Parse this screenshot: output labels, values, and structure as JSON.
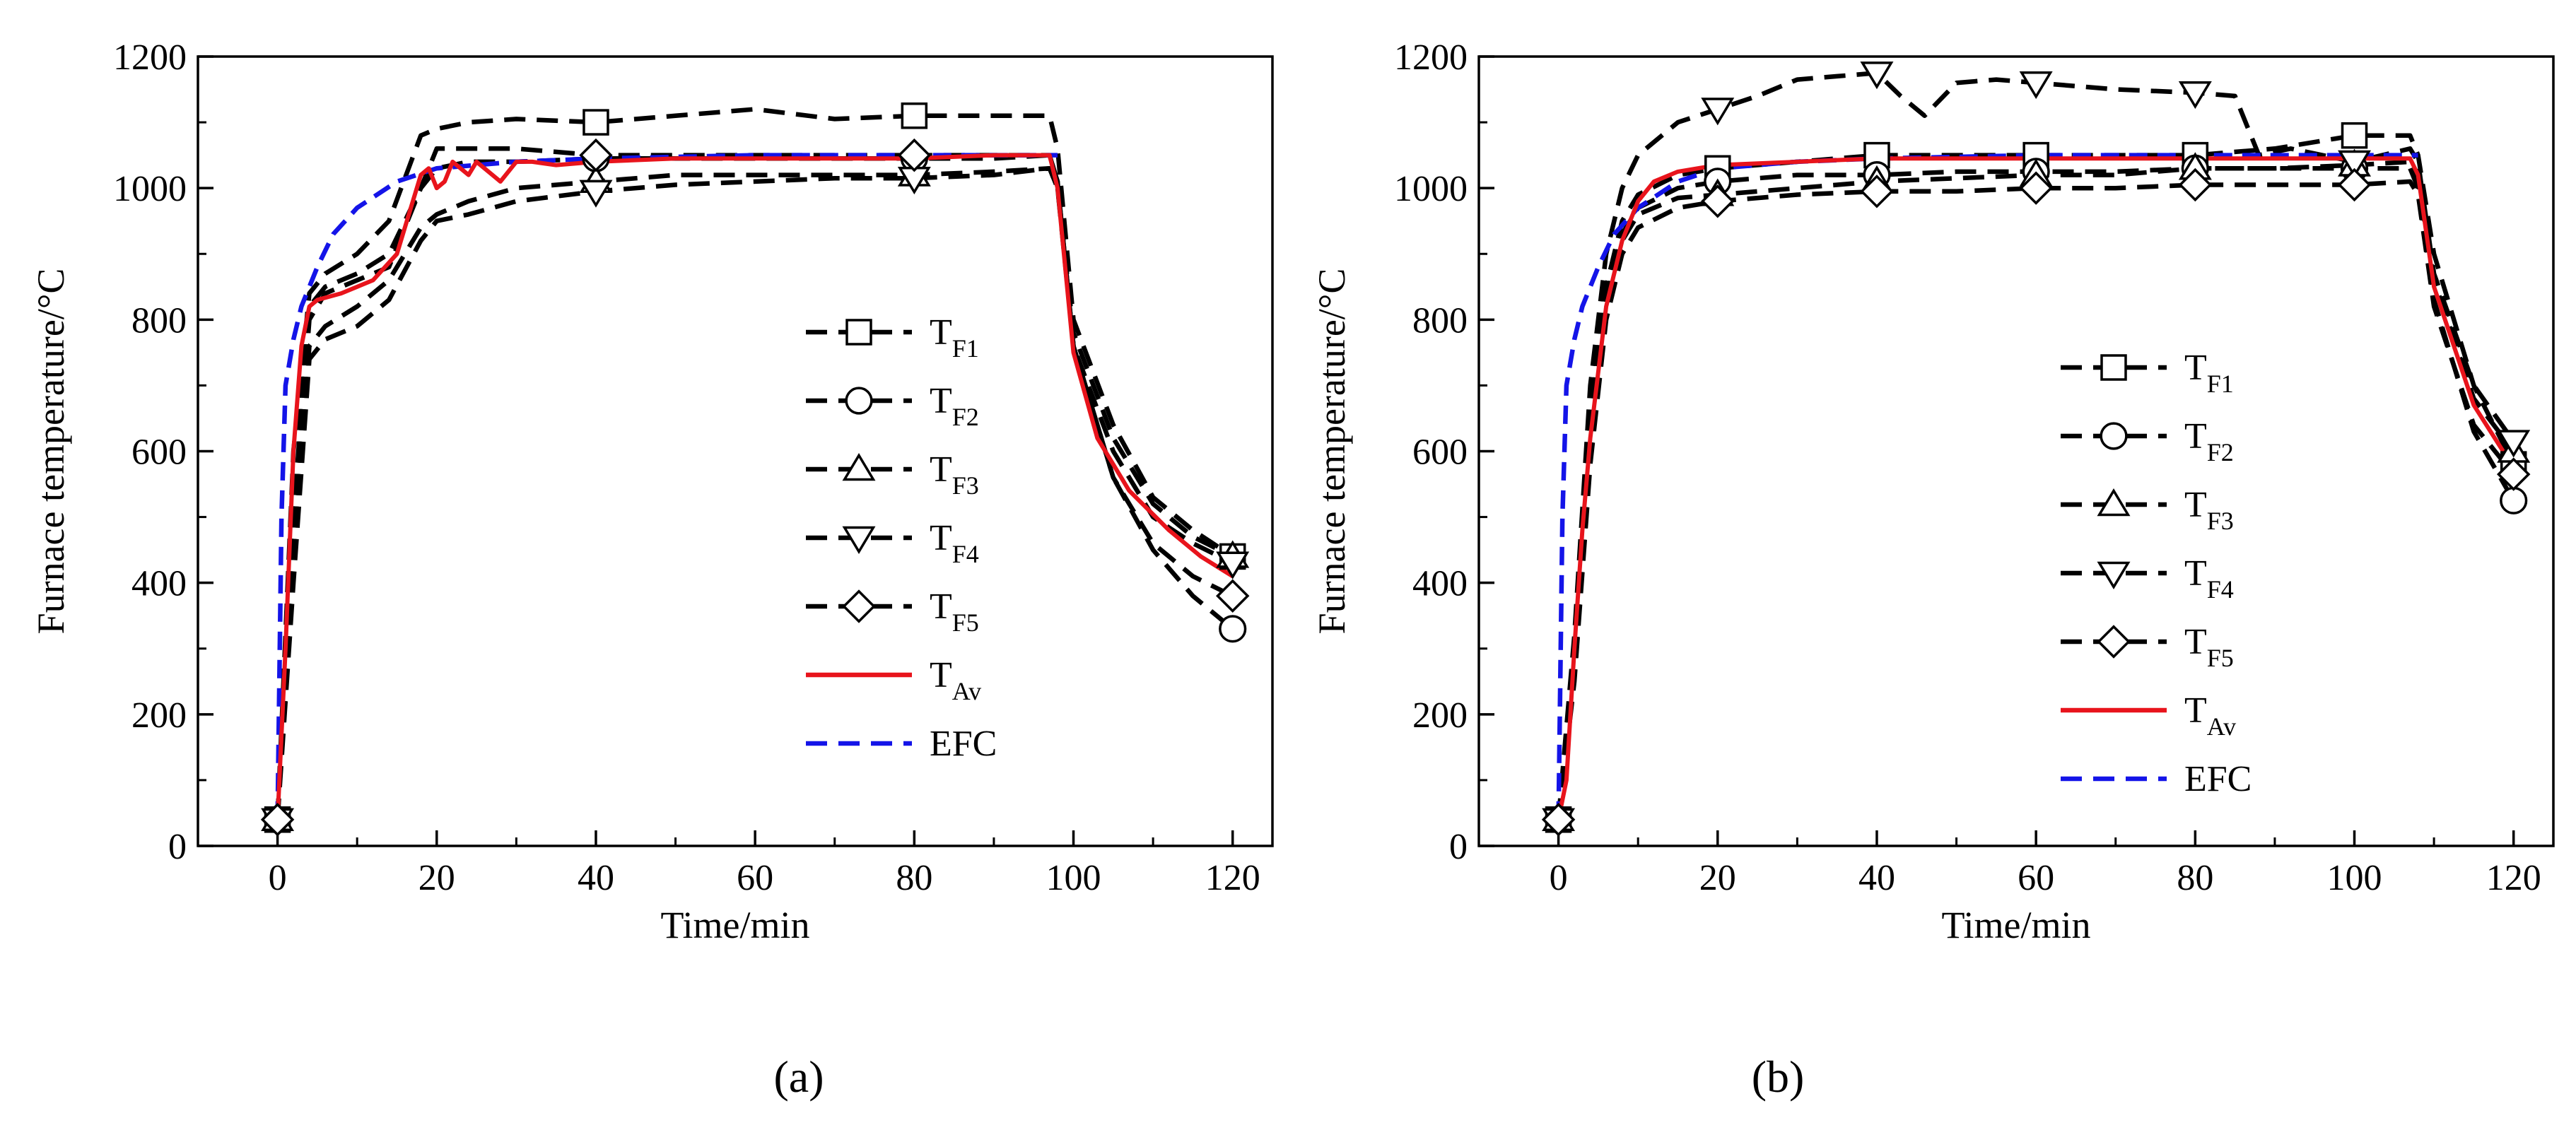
{
  "chart_data": [
    {
      "id": "a",
      "type": "line",
      "caption": "(a)",
      "xlabel": "Time/min",
      "ylabel": "Furnace temperature/°C",
      "xlim": [
        -10,
        125
      ],
      "ylim": [
        0,
        1200
      ],
      "xticks": [
        0,
        20,
        40,
        60,
        80,
        100,
        120
      ],
      "yticks": [
        0,
        200,
        400,
        600,
        800,
        1000,
        1200
      ],
      "legend": [
        {
          "key": "TF1",
          "main": "T",
          "sub": "F1",
          "style": "dash",
          "marker": "square"
        },
        {
          "key": "TF2",
          "main": "T",
          "sub": "F2",
          "style": "dash",
          "marker": "circle"
        },
        {
          "key": "TF3",
          "main": "T",
          "sub": "F3",
          "style": "dash",
          "marker": "triangle-up"
        },
        {
          "key": "TF4",
          "main": "T",
          "sub": "F4",
          "style": "dash",
          "marker": "triangle-down"
        },
        {
          "key": "TF5",
          "main": "T",
          "sub": "F5",
          "style": "dash",
          "marker": "diamond"
        },
        {
          "key": "TAv",
          "main": "T",
          "sub": "Av",
          "style": "solid",
          "color": "#e8141c"
        },
        {
          "key": "EFC",
          "main": "EFC",
          "sub": "",
          "style": "dash",
          "color": "#1414e8"
        }
      ],
      "series": [
        {
          "name": "TF1",
          "color": "#000000",
          "dash": true,
          "marker": "square",
          "markers_at": [
            0,
            40,
            80,
            120
          ],
          "x": [
            0,
            2,
            4,
            6,
            10,
            14,
            18,
            20,
            24,
            30,
            40,
            50,
            60,
            70,
            80,
            90,
            97,
            98,
            100,
            105,
            110,
            115,
            120
          ],
          "y": [
            40,
            600,
            840,
            870,
            900,
            950,
            1080,
            1090,
            1100,
            1105,
            1100,
            1110,
            1120,
            1105,
            1110,
            1110,
            1110,
            1060,
            800,
            640,
            530,
            480,
            440
          ]
        },
        {
          "name": "TF2",
          "color": "#000000",
          "dash": true,
          "marker": "circle",
          "markers_at": [
            0,
            40,
            80,
            120
          ],
          "x": [
            0,
            2,
            4,
            6,
            10,
            14,
            18,
            20,
            24,
            30,
            40,
            50,
            60,
            70,
            80,
            90,
            97,
            98,
            100,
            105,
            110,
            115,
            120
          ],
          "y": [
            40,
            500,
            820,
            850,
            870,
            900,
            1000,
            1030,
            1040,
            1040,
            1045,
            1045,
            1045,
            1045,
            1045,
            1045,
            1050,
            1010,
            760,
            560,
            450,
            380,
            330
          ]
        },
        {
          "name": "TF3",
          "color": "#000000",
          "dash": true,
          "marker": "triangle-up",
          "markers_at": [
            0,
            40,
            80,
            120
          ],
          "x": [
            0,
            2,
            4,
            6,
            10,
            14,
            18,
            20,
            24,
            30,
            40,
            50,
            60,
            70,
            80,
            90,
            97,
            98,
            100,
            105,
            110,
            115,
            120
          ],
          "y": [
            40,
            450,
            760,
            790,
            820,
            860,
            940,
            960,
            980,
            1000,
            1010,
            1020,
            1020,
            1020,
            1020,
            1025,
            1030,
            1000,
            780,
            620,
            520,
            470,
            440
          ]
        },
        {
          "name": "TF4",
          "color": "#000000",
          "dash": true,
          "marker": "triangle-down",
          "markers_at": [
            0,
            40,
            80,
            120
          ],
          "x": [
            0,
            2,
            4,
            6,
            10,
            14,
            18,
            20,
            24,
            30,
            40,
            50,
            60,
            70,
            80,
            90,
            97,
            98,
            100,
            105,
            110,
            115,
            120
          ],
          "y": [
            40,
            400,
            740,
            770,
            790,
            830,
            920,
            950,
            960,
            980,
            995,
            1005,
            1010,
            1015,
            1015,
            1020,
            1030,
            1000,
            760,
            600,
            500,
            460,
            430
          ]
        },
        {
          "name": "TF5",
          "color": "#000000",
          "dash": true,
          "marker": "diamond",
          "markers_at": [
            0,
            40,
            80,
            120
          ],
          "x": [
            0,
            2,
            4,
            6,
            10,
            14,
            18,
            20,
            24,
            30,
            40,
            50,
            60,
            70,
            80,
            90,
            97,
            98,
            100,
            105,
            110,
            115,
            120
          ],
          "y": [
            40,
            480,
            800,
            840,
            860,
            880,
            1000,
            1060,
            1060,
            1060,
            1050,
            1050,
            1050,
            1050,
            1050,
            1050,
            1050,
            1010,
            760,
            560,
            460,
            410,
            380
          ]
        },
        {
          "name": "TAv",
          "color": "#e8141c",
          "dash": false,
          "marker": null,
          "x": [
            0,
            1,
            2,
            3,
            4,
            5,
            8,
            12,
            15,
            17,
            18,
            19,
            20,
            21,
            22,
            24,
            25,
            26,
            28,
            30,
            32,
            35,
            40,
            50,
            60,
            70,
            80,
            90,
            97,
            98,
            100,
            103,
            107,
            112,
            116,
            120
          ],
          "y": [
            40,
            300,
            600,
            760,
            820,
            830,
            840,
            860,
            900,
            980,
            1020,
            1030,
            1000,
            1010,
            1040,
            1020,
            1040,
            1030,
            1010,
            1040,
            1040,
            1035,
            1040,
            1045,
            1045,
            1045,
            1045,
            1050,
            1050,
            1000,
            750,
            620,
            540,
            480,
            440,
            410
          ]
        },
        {
          "name": "EFC",
          "color": "#1414e8",
          "dash": true,
          "marker": null,
          "x": [
            0,
            0.5,
            1,
            2,
            3,
            5,
            7,
            10,
            15,
            20,
            30,
            40,
            60,
            80,
            98
          ],
          "y": [
            40,
            500,
            700,
            770,
            820,
            880,
            930,
            970,
            1010,
            1030,
            1040,
            1045,
            1050,
            1050,
            1050
          ]
        }
      ]
    },
    {
      "id": "b",
      "type": "line",
      "caption": "(b)",
      "xlabel": "Time/min",
      "ylabel": "Furnace temperature/°C",
      "xlim": [
        -10,
        125
      ],
      "ylim": [
        0,
        1200
      ],
      "xticks": [
        0,
        20,
        40,
        60,
        80,
        100,
        120
      ],
      "yticks": [
        0,
        200,
        400,
        600,
        800,
        1000,
        1200
      ],
      "legend": [
        {
          "key": "TF1",
          "main": "T",
          "sub": "F1",
          "style": "dash",
          "marker": "square"
        },
        {
          "key": "TF2",
          "main": "T",
          "sub": "F2",
          "style": "dash",
          "marker": "circle"
        },
        {
          "key": "TF3",
          "main": "T",
          "sub": "F3",
          "style": "dash",
          "marker": "triangle-up"
        },
        {
          "key": "TF4",
          "main": "T",
          "sub": "F4",
          "style": "dash",
          "marker": "triangle-down"
        },
        {
          "key": "TF5",
          "main": "T",
          "sub": "F5",
          "style": "dash",
          "marker": "diamond"
        },
        {
          "key": "TAv",
          "main": "T",
          "sub": "Av",
          "style": "solid",
          "color": "#e8141c"
        },
        {
          "key": "EFC",
          "main": "EFC",
          "sub": "",
          "style": "dash",
          "color": "#1414e8"
        }
      ],
      "series": [
        {
          "name": "TF1",
          "color": "#000000",
          "dash": true,
          "marker": "square",
          "markers_at": [
            0,
            20,
            40,
            60,
            80,
            100,
            120
          ],
          "x": [
            0,
            2,
            4,
            6,
            8,
            10,
            15,
            20,
            30,
            40,
            50,
            60,
            70,
            80,
            90,
            100,
            107,
            108,
            110,
            115,
            120
          ],
          "y": [
            40,
            300,
            650,
            850,
            950,
            990,
            1020,
            1030,
            1040,
            1050,
            1050,
            1050,
            1050,
            1050,
            1060,
            1080,
            1080,
            1050,
            900,
            700,
            580
          ]
        },
        {
          "name": "TF2",
          "color": "#000000",
          "dash": true,
          "marker": "circle",
          "markers_at": [
            0,
            20,
            40,
            60,
            80,
            100,
            120
          ],
          "x": [
            0,
            2,
            4,
            6,
            8,
            10,
            15,
            20,
            30,
            40,
            50,
            60,
            70,
            80,
            90,
            100,
            107,
            108,
            110,
            115,
            120
          ],
          "y": [
            40,
            280,
            620,
            830,
            930,
            970,
            1000,
            1010,
            1020,
            1020,
            1025,
            1025,
            1025,
            1030,
            1030,
            1030,
            1030,
            1000,
            830,
            630,
            525
          ]
        },
        {
          "name": "TF3",
          "color": "#000000",
          "dash": true,
          "marker": "triangle-up",
          "markers_at": [
            0,
            20,
            40,
            60,
            80,
            100,
            120
          ],
          "x": [
            0,
            2,
            4,
            6,
            8,
            10,
            15,
            20,
            30,
            40,
            50,
            60,
            70,
            80,
            90,
            100,
            107,
            108,
            110,
            115,
            120
          ],
          "y": [
            40,
            260,
            600,
            820,
            920,
            960,
            985,
            990,
            1000,
            1010,
            1015,
            1020,
            1020,
            1030,
            1030,
            1035,
            1040,
            1010,
            860,
            680,
            600
          ]
        },
        {
          "name": "TF4",
          "color": "#000000",
          "dash": true,
          "marker": "triangle-down",
          "markers_at": [
            0,
            20,
            40,
            60,
            80,
            100,
            120
          ],
          "x": [
            0,
            2,
            4,
            6,
            8,
            10,
            15,
            20,
            25,
            30,
            35,
            40,
            43,
            46,
            50,
            55,
            60,
            70,
            80,
            85,
            88,
            92,
            100,
            107,
            108,
            110,
            115,
            120
          ],
          "y": [
            40,
            320,
            700,
            900,
            1000,
            1050,
            1100,
            1120,
            1140,
            1165,
            1170,
            1175,
            1140,
            1110,
            1160,
            1165,
            1160,
            1150,
            1145,
            1140,
            1050,
            1060,
            1040,
            1060,
            1040,
            870,
            700,
            615
          ]
        },
        {
          "name": "TF5",
          "color": "#000000",
          "dash": true,
          "marker": "diamond",
          "markers_at": [
            0,
            20,
            40,
            60,
            80,
            100,
            120
          ],
          "x": [
            0,
            2,
            4,
            6,
            8,
            10,
            15,
            20,
            30,
            40,
            50,
            60,
            70,
            80,
            90,
            100,
            107,
            108,
            110,
            115,
            120
          ],
          "y": [
            40,
            250,
            580,
            800,
            900,
            940,
            970,
            980,
            990,
            995,
            995,
            1000,
            1000,
            1005,
            1005,
            1005,
            1010,
            990,
            820,
            640,
            565
          ]
        },
        {
          "name": "TAv",
          "color": "#e8141c",
          "dash": false,
          "marker": null,
          "x": [
            0,
            1,
            2,
            3,
            4,
            6,
            8,
            10,
            12,
            15,
            20,
            30,
            40,
            50,
            60,
            70,
            80,
            90,
            100,
            107,
            108,
            110,
            115,
            120
          ],
          "y": [
            40,
            100,
            300,
            480,
            620,
            820,
            920,
            980,
            1010,
            1025,
            1035,
            1040,
            1045,
            1045,
            1045,
            1045,
            1045,
            1045,
            1045,
            1045,
            1020,
            850,
            670,
            575
          ]
        },
        {
          "name": "EFC",
          "color": "#1414e8",
          "dash": true,
          "marker": null,
          "x": [
            0,
            0.5,
            1,
            2,
            3,
            5,
            7,
            10,
            15,
            20,
            30,
            40,
            60,
            80,
            108
          ],
          "y": [
            40,
            500,
            700,
            770,
            820,
            880,
            930,
            970,
            1010,
            1030,
            1040,
            1045,
            1050,
            1050,
            1050
          ]
        }
      ]
    }
  ]
}
